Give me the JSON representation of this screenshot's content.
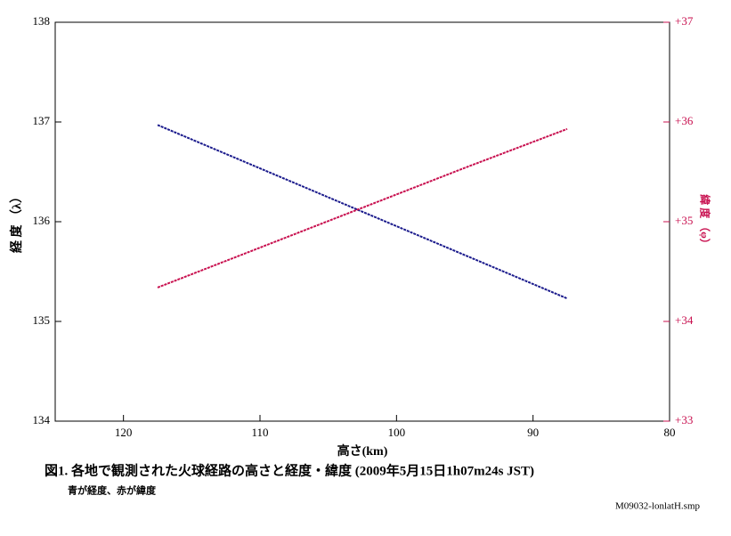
{
  "chart_data": {
    "type": "line",
    "caption": "図1. 各地で観測された火球経路の高さと経度・緯度 (2009年5月15日1h07m24s JST)",
    "subcaption": "青が経度、赤が緯度",
    "file_name": "M09032-lonlatH.smp",
    "xlabel": "高さ(km)",
    "ylabel": "経 度 （λ）",
    "y2label": "緯 度 （φ）",
    "x": [
      117.5,
      110,
      102.5,
      95,
      87.5
    ],
    "series": [
      {
        "name": "経度",
        "color": "#1a1a8c",
        "values": [
          136.97,
          136.535,
          136.1,
          135.665,
          135.23
        ]
      },
      {
        "name": "緯度",
        "color": "#c8104f",
        "axis": "y2",
        "values": [
          34.34,
          34.74,
          35.14,
          35.54,
          35.93
        ]
      }
    ],
    "xlim": [
      125,
      80
    ],
    "xticks": [
      120,
      110,
      100,
      90,
      80
    ],
    "ylim": [
      134,
      138
    ],
    "yticks": [
      134,
      135,
      136,
      137,
      138
    ],
    "y2lim": [
      33,
      37
    ],
    "y2ticks": [
      {
        "value": 33,
        "label": "+33"
      },
      {
        "value": 34,
        "label": "+34"
      },
      {
        "value": 35,
        "label": "+35"
      },
      {
        "value": 36,
        "label": "+36"
      },
      {
        "value": 37,
        "label": "+37"
      }
    ]
  }
}
